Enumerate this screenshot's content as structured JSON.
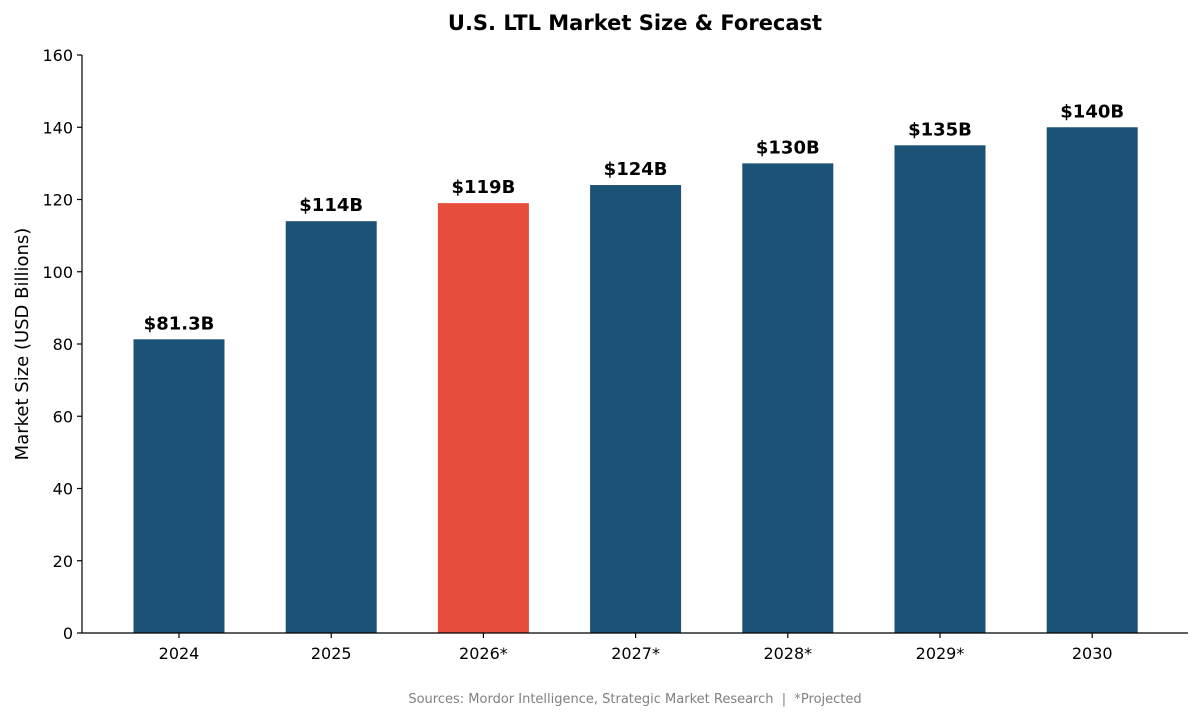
{
  "chart_data": {
    "type": "bar",
    "title": "U.S. LTL Market Size & Forecast",
    "xlabel": "",
    "ylabel": "Market Size (USD Billions)",
    "ylim": [
      0,
      160
    ],
    "yticks": [
      0,
      20,
      40,
      60,
      80,
      100,
      120,
      140,
      160
    ],
    "categories": [
      "2024",
      "2025",
      "2026*",
      "2027*",
      "2028*",
      "2029*",
      "2030"
    ],
    "values": [
      81.3,
      114,
      119,
      124,
      130,
      135,
      140
    ],
    "data_labels": [
      "$81.3B",
      "$114B",
      "$119B",
      "$124B",
      "$130B",
      "$135B",
      "$140B"
    ],
    "highlight_category": "2026*",
    "colors": {
      "bar": "#1c5276",
      "highlight": "#e74c3c"
    },
    "grid": false,
    "footnote": "Sources: Mordor Intelligence, Strategic Market Research  |  *Projected"
  }
}
